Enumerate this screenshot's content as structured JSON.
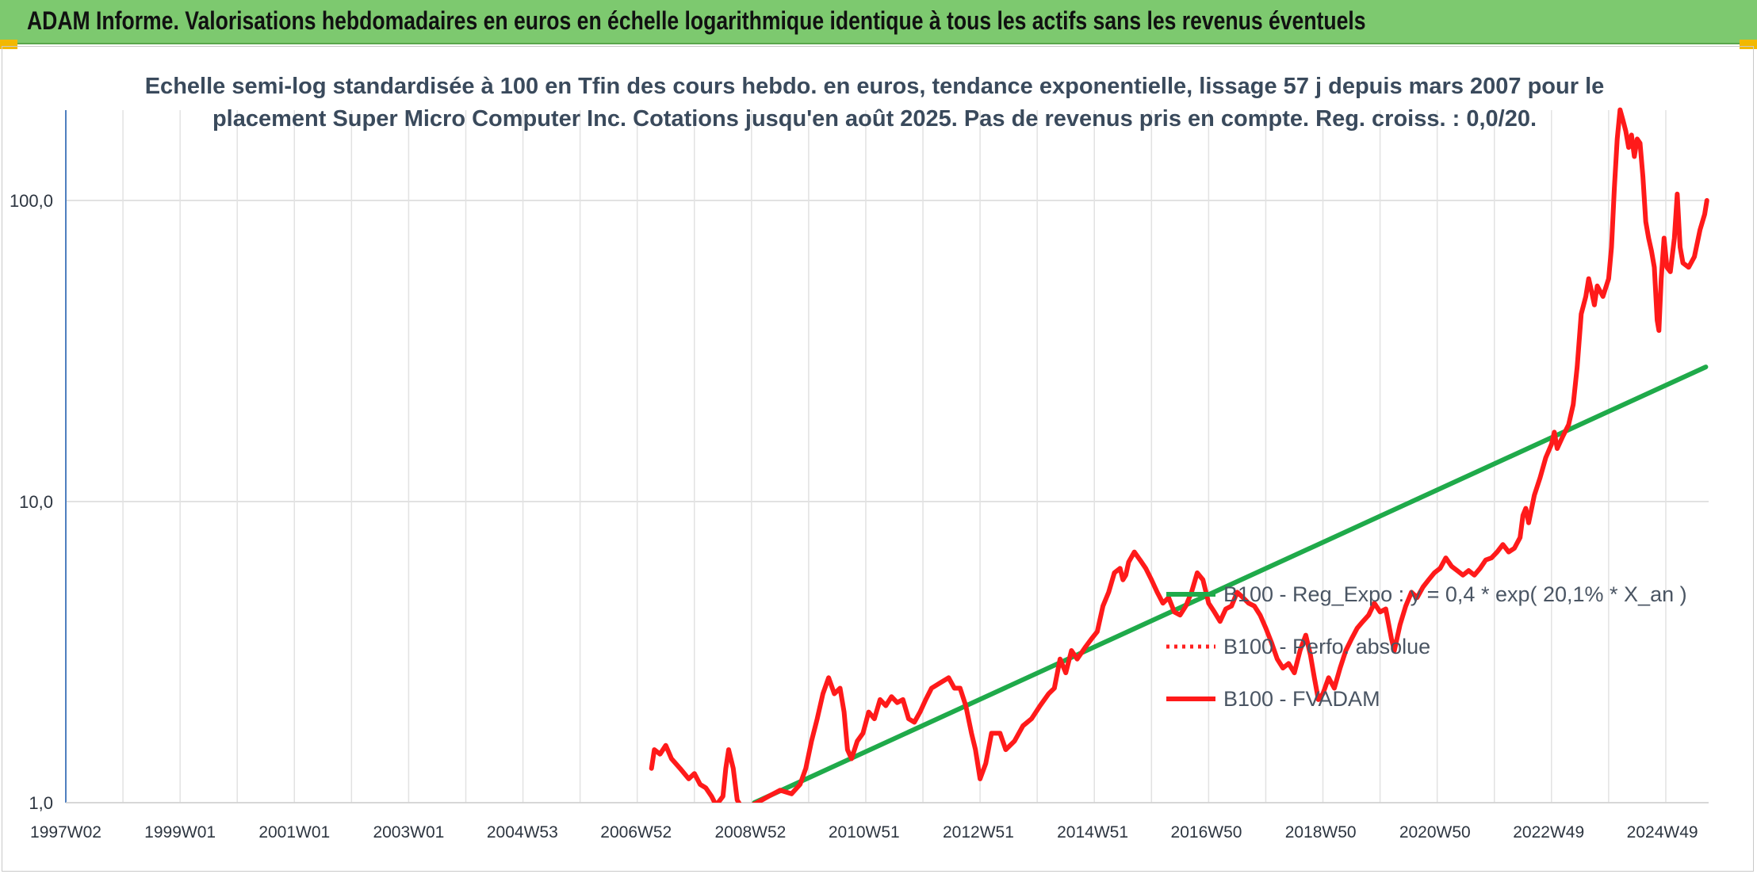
{
  "page_title": "ADAM Informe. Valorisations hebdomadaires en euros en échelle logarithmique identique à tous les actifs sans les revenus éventuels",
  "chart_data": {
    "type": "line",
    "title_lines": [
      "Echelle semi-log standardisée à 100 en Tfin des cours hebdo. en euros, tendance exponentielle, lissage 57 j depuis mars 2007 pour le",
      "placement Super Micro Computer Inc. Cotations jusqu'en août 2025. Pas de revenus pris en compte. Reg. croiss. : 0,0/20."
    ],
    "y_scale": "log",
    "ylim": [
      1,
      200
    ],
    "y_ticks": [
      {
        "value": 1,
        "label": "1,0"
      },
      {
        "value": 10,
        "label": "10,0"
      },
      {
        "value": 100,
        "label": "100,0"
      }
    ],
    "xlim": [
      1997.0,
      2025.75
    ],
    "x_ticks": [
      {
        "x": 1997.0,
        "label": "1997W02"
      },
      {
        "x": 1999.0,
        "label": "1999W01"
      },
      {
        "x": 2001.0,
        "label": "2001W01"
      },
      {
        "x": 2003.0,
        "label": "2003W01"
      },
      {
        "x": 2004.99,
        "label": "2004W53"
      },
      {
        "x": 2006.98,
        "label": "2006W52"
      },
      {
        "x": 2008.98,
        "label": "2008W52"
      },
      {
        "x": 2010.97,
        "label": "2010W51"
      },
      {
        "x": 2012.97,
        "label": "2012W51"
      },
      {
        "x": 2014.97,
        "label": "2014W51"
      },
      {
        "x": 2016.96,
        "label": "2016W50"
      },
      {
        "x": 2018.96,
        "label": "2018W50"
      },
      {
        "x": 2020.96,
        "label": "2020W50"
      },
      {
        "x": 2022.95,
        "label": "2022W49"
      },
      {
        "x": 2024.94,
        "label": "2024W49"
      }
    ],
    "grid": {
      "vertical": true,
      "horizontal": true
    },
    "legend_position": "right-center",
    "series": [
      {
        "name": "B100 - Reg_Expo : y = 0,4 * exp( 20,1% *  X_an )",
        "color": "#1faa4a",
        "style": "solid",
        "points": [
          [
            2009.05,
            1.0
          ],
          [
            2025.7,
            28.0
          ]
        ]
      },
      {
        "name": "B100 - Perfo. absolue",
        "color": "#ff2020",
        "style": "dotted",
        "points": []
      },
      {
        "name": "B100 - FVADAM",
        "color": "#ff1a1a",
        "style": "solid",
        "points": [
          [
            2007.25,
            1.3
          ],
          [
            2007.3,
            1.5
          ],
          [
            2007.4,
            1.45
          ],
          [
            2007.5,
            1.55
          ],
          [
            2007.6,
            1.4
          ],
          [
            2007.75,
            1.3
          ],
          [
            2007.9,
            1.2
          ],
          [
            2008.0,
            1.25
          ],
          [
            2008.1,
            1.15
          ],
          [
            2008.2,
            1.12
          ],
          [
            2008.3,
            1.05
          ],
          [
            2008.38,
            0.98
          ],
          [
            2008.5,
            1.05
          ],
          [
            2008.55,
            1.3
          ],
          [
            2008.6,
            1.5
          ],
          [
            2008.68,
            1.3
          ],
          [
            2008.75,
            1.02
          ],
          [
            2008.85,
            0.95
          ],
          [
            2009.1,
            1.0
          ],
          [
            2009.3,
            1.05
          ],
          [
            2009.5,
            1.1
          ],
          [
            2009.7,
            1.07
          ],
          [
            2009.85,
            1.15
          ],
          [
            2009.95,
            1.3
          ],
          [
            2010.05,
            1.6
          ],
          [
            2010.15,
            1.9
          ],
          [
            2010.25,
            2.3
          ],
          [
            2010.35,
            2.6
          ],
          [
            2010.45,
            2.3
          ],
          [
            2010.55,
            2.4
          ],
          [
            2010.62,
            2.0
          ],
          [
            2010.68,
            1.5
          ],
          [
            2010.75,
            1.4
          ],
          [
            2010.85,
            1.6
          ],
          [
            2010.95,
            1.7
          ],
          [
            2011.05,
            2.0
          ],
          [
            2011.15,
            1.9
          ],
          [
            2011.25,
            2.2
          ],
          [
            2011.35,
            2.1
          ],
          [
            2011.45,
            2.25
          ],
          [
            2011.55,
            2.15
          ],
          [
            2011.65,
            2.2
          ],
          [
            2011.75,
            1.9
          ],
          [
            2011.85,
            1.85
          ],
          [
            2011.95,
            2.0
          ],
          [
            2012.05,
            2.2
          ],
          [
            2012.15,
            2.4
          ],
          [
            2012.3,
            2.5
          ],
          [
            2012.45,
            2.6
          ],
          [
            2012.55,
            2.4
          ],
          [
            2012.65,
            2.4
          ],
          [
            2012.75,
            2.1
          ],
          [
            2012.85,
            1.7
          ],
          [
            2012.92,
            1.5
          ],
          [
            2013.0,
            1.2
          ],
          [
            2013.1,
            1.35
          ],
          [
            2013.2,
            1.7
          ],
          [
            2013.35,
            1.7
          ],
          [
            2013.45,
            1.5
          ],
          [
            2013.6,
            1.6
          ],
          [
            2013.75,
            1.8
          ],
          [
            2013.9,
            1.9
          ],
          [
            2014.05,
            2.1
          ],
          [
            2014.2,
            2.3
          ],
          [
            2014.3,
            2.4
          ],
          [
            2014.4,
            3.0
          ],
          [
            2014.5,
            2.7
          ],
          [
            2014.6,
            3.2
          ],
          [
            2014.7,
            3.0
          ],
          [
            2014.85,
            3.3
          ],
          [
            2014.95,
            3.5
          ],
          [
            2015.05,
            3.7
          ],
          [
            2015.15,
            4.5
          ],
          [
            2015.25,
            5.0
          ],
          [
            2015.35,
            5.8
          ],
          [
            2015.45,
            6.0
          ],
          [
            2015.5,
            5.5
          ],
          [
            2015.55,
            5.7
          ],
          [
            2015.6,
            6.3
          ],
          [
            2015.7,
            6.8
          ],
          [
            2015.8,
            6.4
          ],
          [
            2015.9,
            6.0
          ],
          [
            2016.0,
            5.5
          ],
          [
            2016.1,
            5.0
          ],
          [
            2016.2,
            4.6
          ],
          [
            2016.3,
            4.8
          ],
          [
            2016.4,
            4.3
          ],
          [
            2016.5,
            4.2
          ],
          [
            2016.6,
            4.5
          ],
          [
            2016.7,
            5.0
          ],
          [
            2016.8,
            5.8
          ],
          [
            2016.9,
            5.5
          ],
          [
            2017.0,
            4.6
          ],
          [
            2017.1,
            4.3
          ],
          [
            2017.2,
            4.0
          ],
          [
            2017.3,
            4.4
          ],
          [
            2017.4,
            4.5
          ],
          [
            2017.5,
            5.0
          ],
          [
            2017.6,
            4.8
          ],
          [
            2017.7,
            4.6
          ],
          [
            2017.8,
            4.5
          ],
          [
            2017.9,
            4.2
          ],
          [
            2018.0,
            3.8
          ],
          [
            2018.1,
            3.4
          ],
          [
            2018.2,
            3.0
          ],
          [
            2018.3,
            2.8
          ],
          [
            2018.4,
            2.9
          ],
          [
            2018.5,
            2.7
          ],
          [
            2018.6,
            3.2
          ],
          [
            2018.7,
            3.6
          ],
          [
            2018.78,
            3.1
          ],
          [
            2018.85,
            2.6
          ],
          [
            2018.92,
            2.2
          ],
          [
            2019.0,
            2.3
          ],
          [
            2019.1,
            2.6
          ],
          [
            2019.2,
            2.4
          ],
          [
            2019.3,
            2.8
          ],
          [
            2019.4,
            3.2
          ],
          [
            2019.5,
            3.5
          ],
          [
            2019.6,
            3.8
          ],
          [
            2019.7,
            4.0
          ],
          [
            2019.8,
            4.2
          ],
          [
            2019.9,
            4.6
          ],
          [
            2020.0,
            4.3
          ],
          [
            2020.1,
            4.4
          ],
          [
            2020.2,
            3.5
          ],
          [
            2020.25,
            3.2
          ],
          [
            2020.35,
            3.9
          ],
          [
            2020.45,
            4.5
          ],
          [
            2020.55,
            5.0
          ],
          [
            2020.65,
            4.8
          ],
          [
            2020.75,
            5.2
          ],
          [
            2020.85,
            5.5
          ],
          [
            2020.95,
            5.8
          ],
          [
            2021.05,
            6.0
          ],
          [
            2021.15,
            6.5
          ],
          [
            2021.25,
            6.1
          ],
          [
            2021.35,
            5.9
          ],
          [
            2021.45,
            5.7
          ],
          [
            2021.55,
            5.9
          ],
          [
            2021.65,
            5.7
          ],
          [
            2021.75,
            6.0
          ],
          [
            2021.85,
            6.4
          ],
          [
            2021.95,
            6.5
          ],
          [
            2022.05,
            6.8
          ],
          [
            2022.15,
            7.2
          ],
          [
            2022.25,
            6.8
          ],
          [
            2022.35,
            7.0
          ],
          [
            2022.45,
            7.6
          ],
          [
            2022.5,
            9.0
          ],
          [
            2022.55,
            9.5
          ],
          [
            2022.6,
            8.5
          ],
          [
            2022.7,
            10.5
          ],
          [
            2022.8,
            12.0
          ],
          [
            2022.9,
            14.0
          ],
          [
            2023.0,
            15.5
          ],
          [
            2023.05,
            17.0
          ],
          [
            2023.1,
            15.0
          ],
          [
            2023.2,
            16.5
          ],
          [
            2023.3,
            18.0
          ],
          [
            2023.38,
            21.0
          ],
          [
            2023.45,
            28.0
          ],
          [
            2023.52,
            42.0
          ],
          [
            2023.6,
            48.0
          ],
          [
            2023.65,
            55.0
          ],
          [
            2023.7,
            50.0
          ],
          [
            2023.75,
            45.0
          ],
          [
            2023.8,
            52.0
          ],
          [
            2023.9,
            48.0
          ],
          [
            2024.0,
            55.0
          ],
          [
            2024.05,
            70.0
          ],
          [
            2024.1,
            110.0
          ],
          [
            2024.15,
            160.0
          ],
          [
            2024.2,
            200.0
          ],
          [
            2024.25,
            185.0
          ],
          [
            2024.3,
            170.0
          ],
          [
            2024.35,
            150.0
          ],
          [
            2024.4,
            165.0
          ],
          [
            2024.45,
            140.0
          ],
          [
            2024.5,
            160.0
          ],
          [
            2024.55,
            155.0
          ],
          [
            2024.6,
            120.0
          ],
          [
            2024.65,
            85.0
          ],
          [
            2024.7,
            75.0
          ],
          [
            2024.75,
            68.0
          ],
          [
            2024.8,
            60.0
          ],
          [
            2024.85,
            40.0
          ],
          [
            2024.88,
            37.0
          ],
          [
            2024.92,
            55.0
          ],
          [
            2024.97,
            75.0
          ],
          [
            2025.02,
            60.0
          ],
          [
            2025.08,
            58.0
          ],
          [
            2025.15,
            75.0
          ],
          [
            2025.2,
            105.0
          ],
          [
            2025.25,
            70.0
          ],
          [
            2025.3,
            62.0
          ],
          [
            2025.4,
            60.0
          ],
          [
            2025.5,
            65.0
          ],
          [
            2025.6,
            80.0
          ],
          [
            2025.68,
            90.0
          ],
          [
            2025.72,
            100.0
          ]
        ]
      }
    ]
  }
}
